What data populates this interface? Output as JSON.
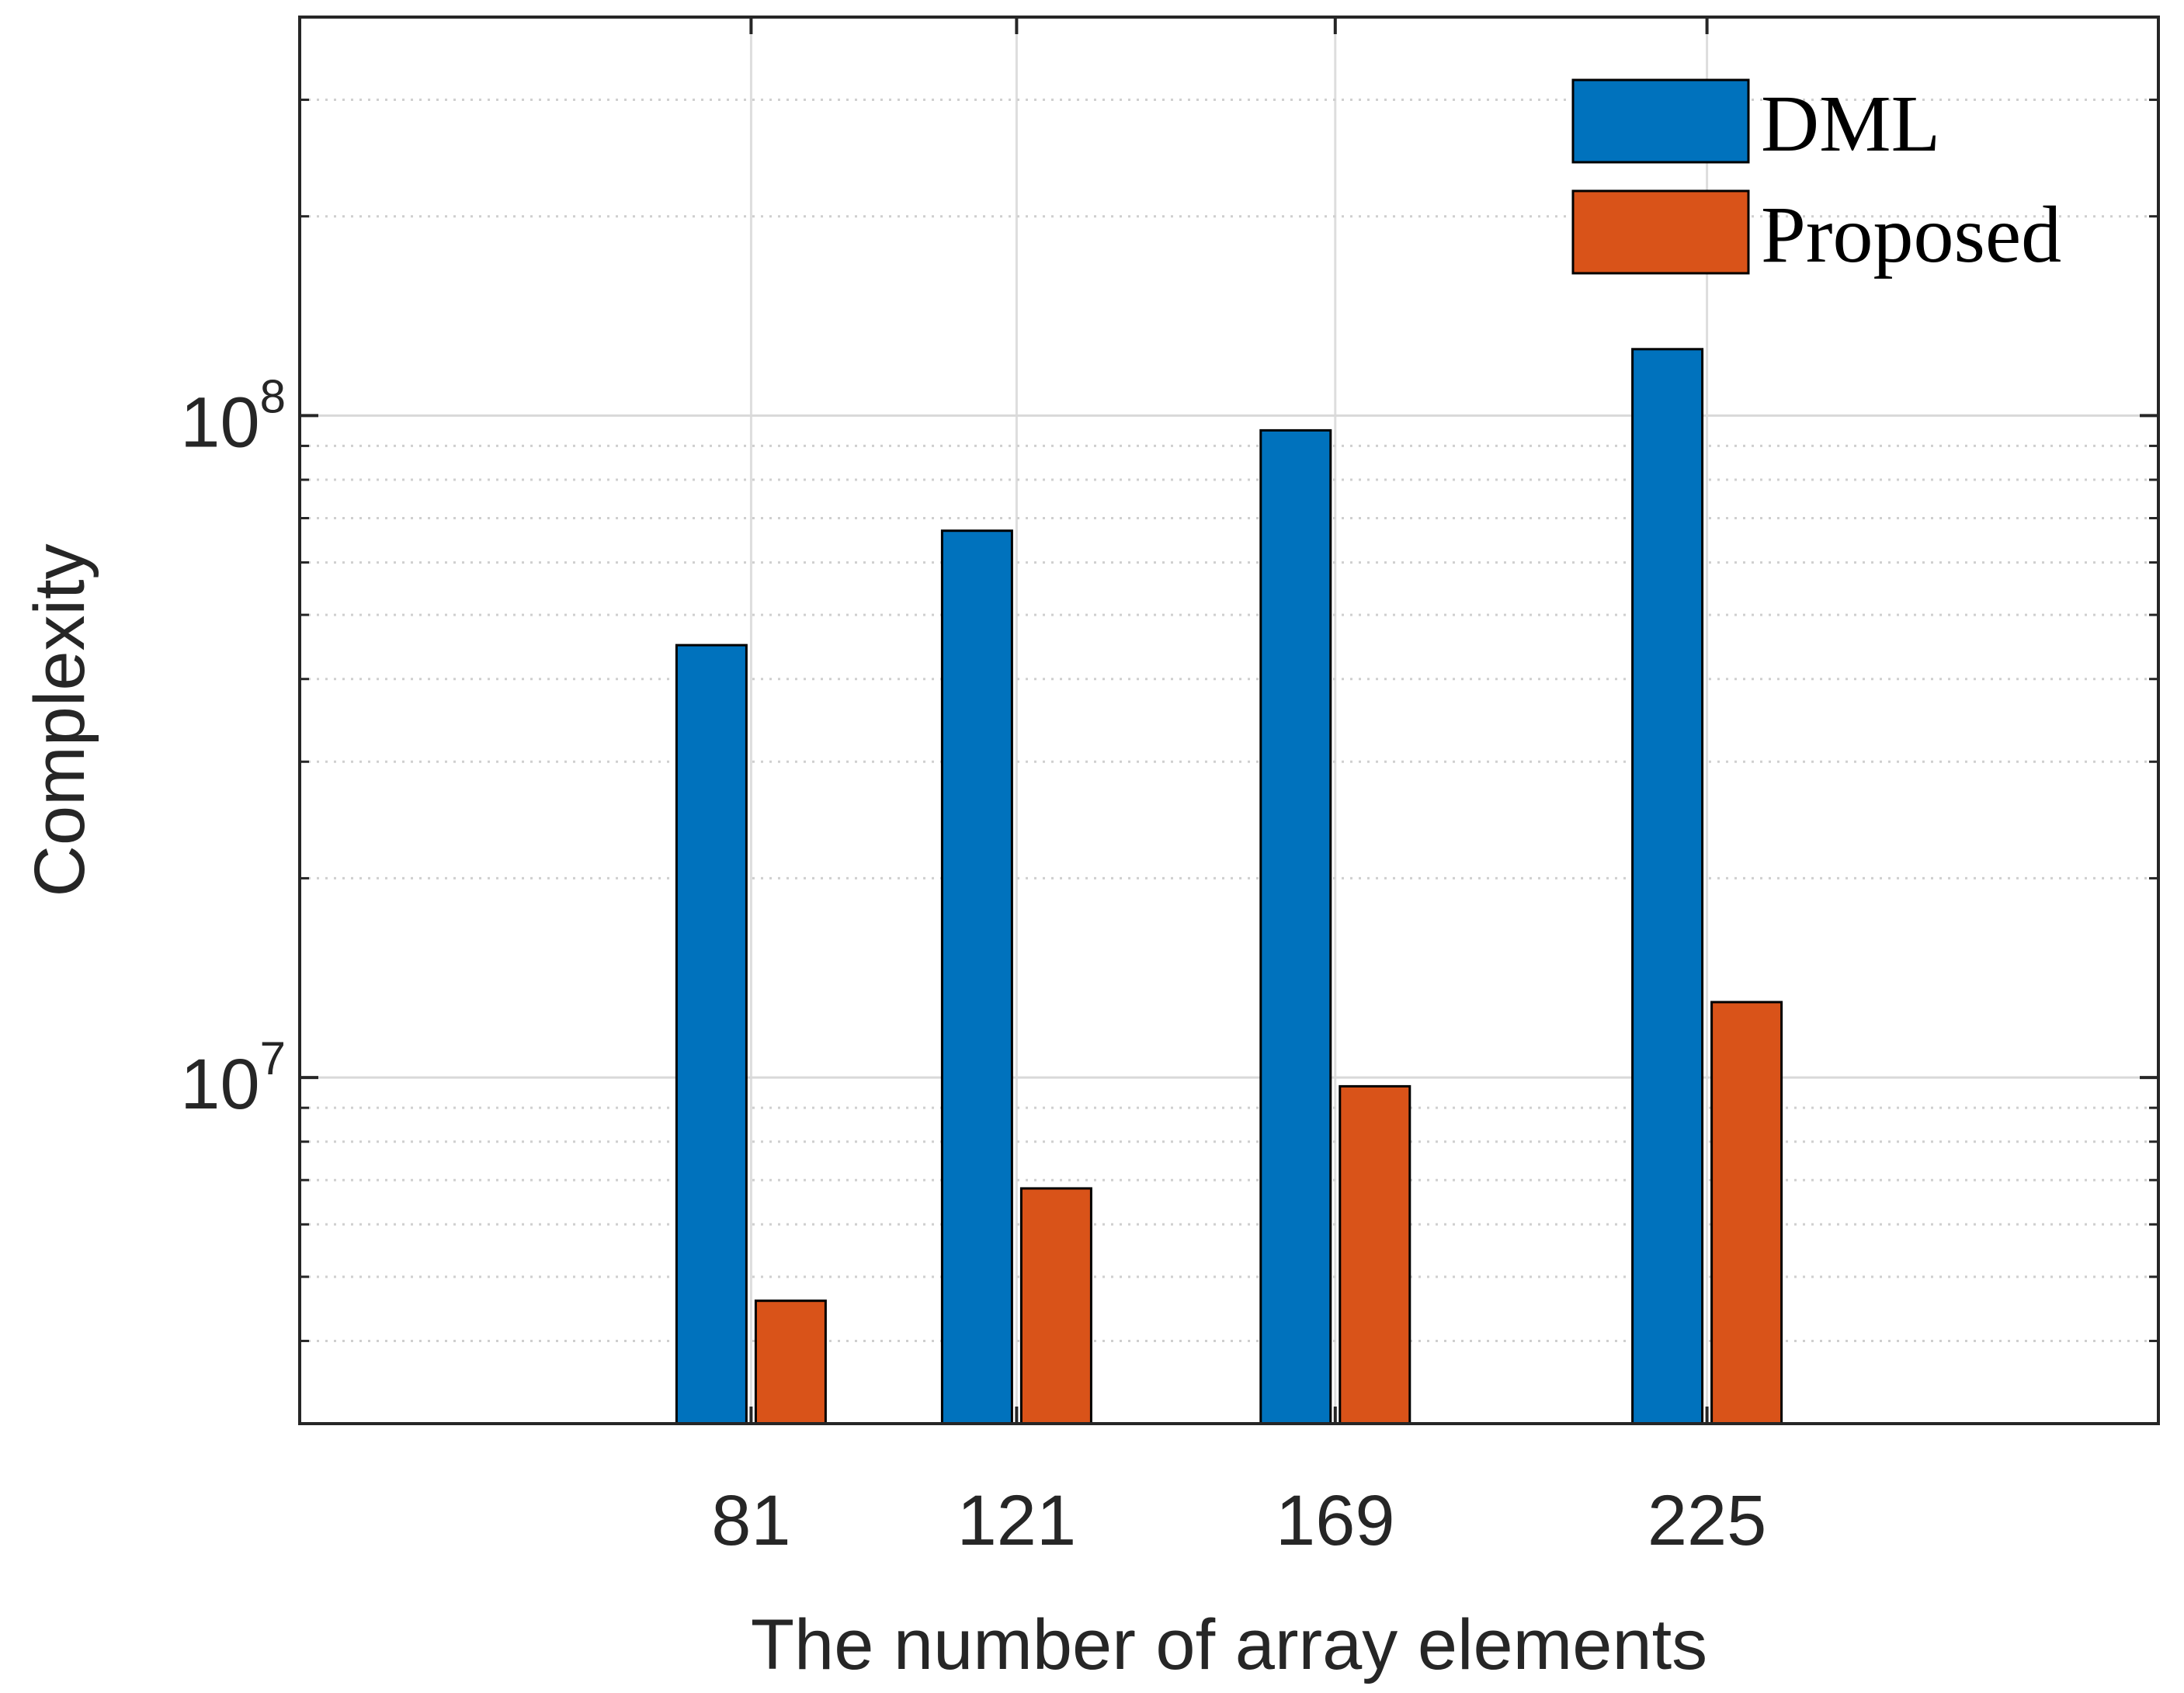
{
  "chart_data": {
    "type": "bar",
    "title": "",
    "xlabel": "The number of array elements",
    "ylabel": "Complexity",
    "yscale": "log",
    "ylim": [
      3000000,
      400000000
    ],
    "grid": true,
    "legend_location": "top-right",
    "categories": [
      "81",
      "121",
      "169",
      "225"
    ],
    "x_positions": [
      81,
      121,
      169,
      225
    ],
    "xlim": [
      13,
      293
    ],
    "y_ticks": [
      {
        "base": "10",
        "exponent": "7",
        "value": 10000000
      },
      {
        "base": "10",
        "exponent": "8",
        "value": 100000000
      }
    ],
    "series": [
      {
        "name": "DML",
        "color": "#0072bd",
        "values": [
          45000000,
          67000000,
          95000000,
          126000000
        ]
      },
      {
        "name": "Proposed",
        "color": "#d95319",
        "values": [
          4600000,
          6800000,
          9700000,
          13000000
        ]
      }
    ]
  }
}
